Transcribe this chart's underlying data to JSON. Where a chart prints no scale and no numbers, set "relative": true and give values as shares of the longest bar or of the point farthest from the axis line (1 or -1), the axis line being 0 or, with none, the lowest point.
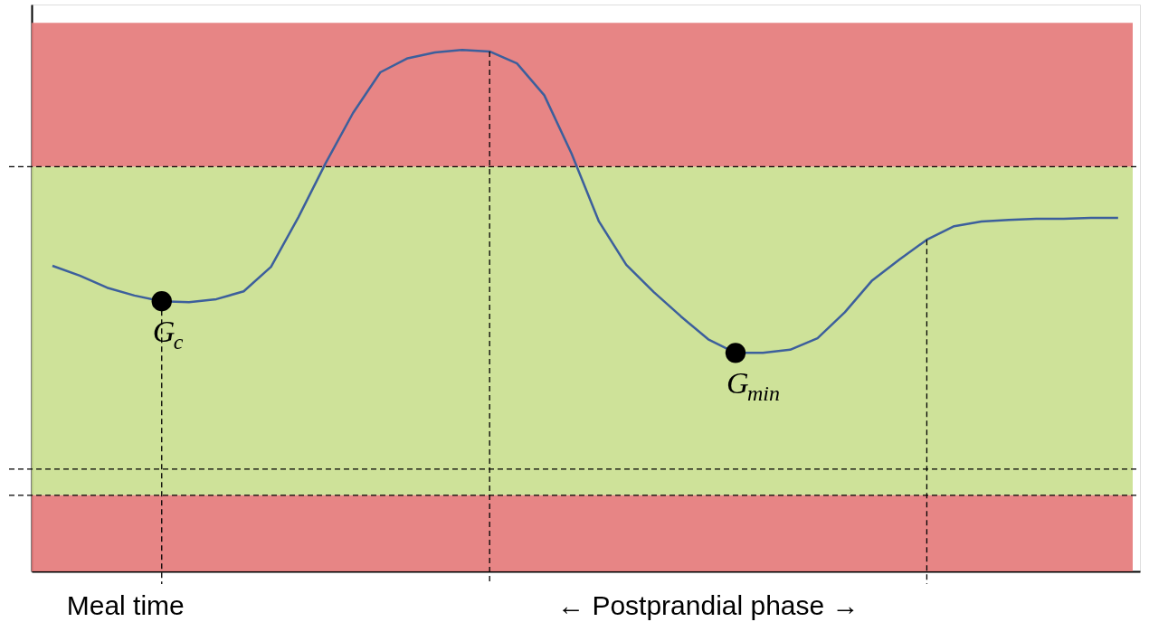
{
  "chart_data": {
    "type": "line",
    "relative": true,
    "grid": false,
    "categories": [
      null,
      null,
      null,
      null,
      null,
      null,
      null,
      null,
      null,
      null,
      null,
      null,
      null,
      null,
      null,
      null,
      null,
      null,
      null,
      null,
      null,
      null,
      null,
      null,
      null,
      null,
      null,
      null,
      null,
      null,
      null,
      null,
      null,
      null,
      null,
      null,
      null,
      null,
      null,
      null
    ],
    "series": [
      {
        "color": "#3c5f9c",
        "line_style": "solid",
        "values": [
          0.586,
          0.567,
          0.544,
          0.529,
          0.518,
          0.516,
          0.522,
          0.537,
          0.584,
          0.679,
          0.783,
          0.879,
          0.957,
          0.984,
          0.995,
          1.0,
          0.997,
          0.974,
          0.913,
          0.801,
          0.671,
          0.588,
          0.536,
          0.489,
          0.445,
          0.419,
          0.419,
          0.425,
          0.447,
          0.497,
          0.558,
          0.598,
          0.636,
          0.662,
          0.671,
          0.674,
          0.676,
          0.676,
          0.678,
          0.678
        ]
      }
    ],
    "bands": [
      {
        "axis": "y",
        "from": 0.776,
        "to": 1.052,
        "color": "#e47878"
      },
      {
        "axis": "y",
        "from": 0.146,
        "to": 0.776,
        "color": "#c9df8e"
      },
      {
        "axis": "y",
        "from": 0,
        "to": 0.146,
        "color": "#e47878"
      }
    ],
    "ref_lines": [
      {
        "axis": "y",
        "value": 0.776,
        "line_style": "dashed"
      },
      {
        "axis": "y",
        "value": 0.196,
        "line_style": "dashed"
      },
      {
        "axis": "y",
        "value": 0.146,
        "line_style": "dashed"
      }
    ],
    "annotations": [
      {
        "text": "G$_{c}$",
        "y": 0.518
      },
      {
        "text": "G$_{min}$",
        "y": 0.419
      },
      "Meal time",
      "← Postprandial phase →"
    ]
  }
}
